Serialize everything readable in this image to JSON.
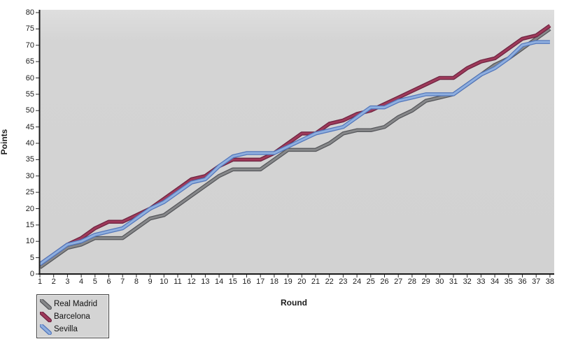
{
  "chart_data": {
    "type": "line",
    "title": "",
    "xlabel": "Round",
    "ylabel": "Points",
    "xlim": [
      1,
      38
    ],
    "ylim": [
      0,
      80
    ],
    "grid": false,
    "legend_position": "bottom-left",
    "plot_bg_color": "#d4d4d4",
    "x": [
      1,
      2,
      3,
      4,
      5,
      6,
      7,
      8,
      9,
      10,
      11,
      12,
      13,
      14,
      15,
      16,
      17,
      18,
      19,
      20,
      21,
      22,
      23,
      24,
      25,
      26,
      27,
      28,
      29,
      30,
      31,
      32,
      33,
      34,
      35,
      36,
      37,
      38
    ],
    "x_ticks": [
      1,
      2,
      3,
      4,
      5,
      6,
      7,
      8,
      9,
      10,
      11,
      12,
      13,
      14,
      15,
      16,
      17,
      18,
      19,
      20,
      21,
      22,
      23,
      24,
      25,
      26,
      27,
      28,
      29,
      30,
      31,
      32,
      33,
      34,
      35,
      36,
      37,
      38
    ],
    "y_ticks": [
      0,
      5,
      10,
      15,
      20,
      25,
      30,
      35,
      40,
      45,
      50,
      55,
      60,
      65,
      70,
      75,
      80
    ],
    "series": [
      {
        "name": "Real Madrid",
        "color": "#87888a",
        "edge_color": "#55565a",
        "values": [
          2,
          5,
          8,
          9,
          11,
          11,
          11,
          14,
          17,
          18,
          21,
          24,
          27,
          30,
          32,
          32,
          32,
          35,
          38,
          38,
          38,
          40,
          43,
          44,
          44,
          45,
          48,
          50,
          53,
          54,
          55,
          58,
          61,
          64,
          66,
          69,
          72,
          75
        ]
      },
      {
        "name": "Barcelona",
        "color": "#9e3a5a",
        "edge_color": "#6d2340",
        "values": [
          3,
          6,
          9,
          11,
          14,
          16,
          16,
          18,
          20,
          23,
          26,
          29,
          30,
          33,
          35,
          35,
          35,
          37,
          40,
          43,
          43,
          46,
          47,
          49,
          50,
          52,
          54,
          56,
          58,
          60,
          60,
          63,
          65,
          66,
          69,
          72,
          73,
          76
        ]
      },
      {
        "name": "Sevilla",
        "color": "#8fafdf",
        "edge_color": "#5377bb",
        "values": [
          3,
          6,
          9,
          10,
          12,
          13,
          14,
          17,
          20,
          22,
          25,
          28,
          29,
          33,
          36,
          37,
          37,
          37,
          39,
          41,
          43,
          44,
          45,
          48,
          51,
          51,
          53,
          54,
          55,
          55,
          55,
          58,
          61,
          63,
          66,
          70,
          71,
          71
        ]
      }
    ]
  }
}
